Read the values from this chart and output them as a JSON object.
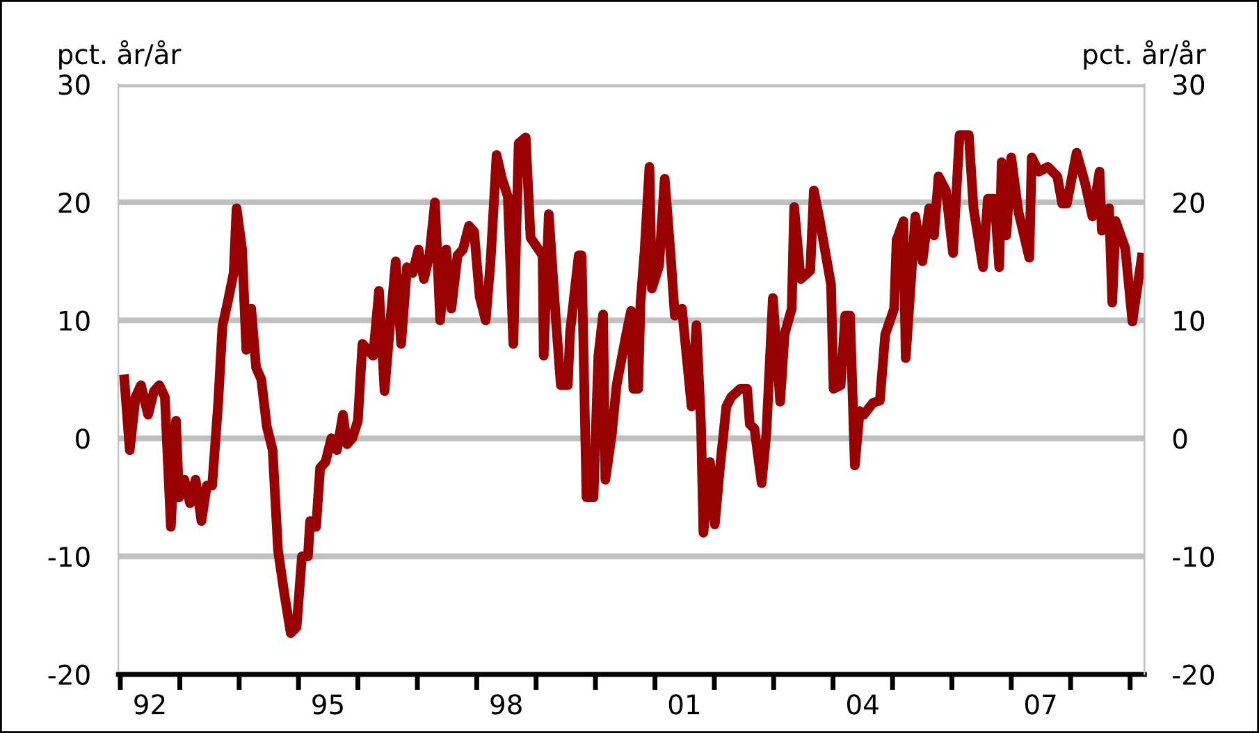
{
  "chart_data": {
    "type": "line",
    "ylabel": "pct. år/år",
    "y2label": "pct. år/år",
    "x": [
      "1992-01-26",
      "1992-02-28",
      "1992-04-04",
      "1992-05-07",
      "1992-06-20",
      "1992-07-26",
      "1992-08-28",
      "1992-10-01",
      "1992-11-07",
      "1992-12-09",
      "1992-12-27",
      "1993-01-29",
      "1993-03-05",
      "1993-04-08",
      "1993-05-14",
      "1993-06-16",
      "1993-07-19",
      "1993-08-25",
      "1993-09-20",
      "1993-10-22",
      "1993-11-28",
      "1993-12-16",
      "1994-01-19",
      "1994-02-14",
      "1994-03-16",
      "1994-04-15",
      "1994-05-17",
      "1994-06-20",
      "1994-07-26",
      "1994-08-28",
      "1994-10-04",
      "1994-11-14",
      "1994-12-20",
      "1995-01-22",
      "1995-02-28",
      "1995-03-13",
      "1995-04-19",
      "1995-05-14",
      "1995-06-16",
      "1995-07-22",
      "1995-08-25",
      "1995-10-01",
      "1995-10-26",
      "1995-11-28",
      "1996-01-01",
      "1996-01-29",
      "1996-03-02",
      "1996-04-04",
      "1996-05-10",
      "1996-06-13",
      "1996-07-19",
      "1996-08-21",
      "1996-09-23",
      "1996-10-29",
      "1996-12-02",
      "1997-01-08",
      "1997-02-10",
      "1997-03-16",
      "1997-04-19",
      "1997-05-21",
      "1997-06-27",
      "1997-07-29",
      "1997-09-05",
      "1997-10-08",
      "1997-11-14",
      "1997-12-16",
      "1998-01-19",
      "1998-02-25",
      "1998-03-27",
      "1998-05-03",
      "1998-06-05",
      "1998-07-11",
      "1998-08-14",
      "1998-09-16",
      "1998-10-29",
      "1998-11-28",
      "1999-02-10",
      "1999-02-17",
      "1999-03-20",
      "1999-05-03",
      "1999-06-02",
      "1999-07-15",
      "1999-07-29",
      "1999-09-20",
      "1999-10-08",
      "1999-11-07",
      "1999-12-20",
      "2000-01-19",
      "2000-02-17",
      "2000-03-02",
      "2000-04-11",
      "2000-05-10",
      "2000-07-08",
      "2000-08-07",
      "2000-08-21",
      "2000-09-20",
      "2000-10-04",
      "2000-10-29",
      "2000-11-28",
      "2000-12-13",
      "2001-01-26",
      "2001-03-02",
      "2001-04-08",
      "2001-05-03",
      "2001-06-16",
      "2001-08-14",
      "2001-09-13",
      "2001-10-11",
      "2001-10-26",
      "2001-12-05",
      "2002-01-04",
      "2002-02-03",
      "2002-03-16",
      "2002-04-15",
      "2002-06-09",
      "2002-07-22",
      "2002-08-07",
      "2002-09-05",
      "2002-10-19",
      "2002-11-17",
      "2002-12-27",
      "2003-02-10",
      "2003-03-09",
      "2003-04-22",
      "2003-05-07",
      "2003-06-16",
      "2003-08-14",
      "2003-09-05",
      "2003-10-11",
      "2003-12-20",
      "2004-01-04",
      "2004-02-17",
      "2004-03-16",
      "2004-04-15",
      "2004-05-14",
      "2004-06-13",
      "2004-07-08",
      "2004-09-02",
      "2004-10-15",
      "2004-11-17",
      "2005-01-11",
      "2005-01-26",
      "2005-03-09",
      "2005-03-23",
      "2005-05-21",
      "2005-07-04",
      "2005-08-14",
      "2005-09-13",
      "2005-10-11",
      "2005-11-25",
      "2006-01-08",
      "2006-02-17",
      "2006-04-15",
      "2006-05-14",
      "2006-07-11",
      "2006-08-10",
      "2006-09-20",
      "2006-10-19",
      "2006-11-03",
      "2006-12-02",
      "2007-01-01",
      "2007-02-14",
      "2007-04-22",
      "2007-05-07",
      "2007-06-20",
      "2007-08-14",
      "2007-10-11",
      "2007-11-10",
      "2007-12-09",
      "2008-02-07",
      "2008-04-01",
      "2008-05-14",
      "2008-06-27",
      "2008-07-11",
      "2008-08-25",
      "2008-09-13",
      "2008-10-04",
      "2008-12-02",
      "2009-01-15",
      "2009-03-13"
    ],
    "series": [
      {
        "color": "#990000",
        "values": [
          5,
          -1,
          3.5,
          4.5,
          2,
          4,
          4.5,
          3.5,
          -7.5,
          1.5,
          -5,
          -3.5,
          -5.5,
          -3.5,
          -7,
          -4,
          -4,
          3,
          9.5,
          11.5,
          14,
          19.5,
          16,
          7.5,
          11,
          6,
          5,
          1,
          -1,
          -9.5,
          -13,
          -16.5,
          -16,
          -10,
          -10,
          -7,
          -7.5,
          -2.5,
          -2,
          0,
          -1,
          2,
          -0.5,
          0,
          1.5,
          8,
          7.5,
          7,
          12.5,
          4,
          10,
          15,
          8,
          14.5,
          14,
          16,
          13.5,
          15.5,
          20,
          10,
          16,
          11,
          15.5,
          16,
          18,
          17.5,
          12,
          10,
          15,
          24,
          22,
          20.5,
          8,
          25,
          25.5,
          17,
          15.5,
          7,
          19,
          10,
          4.5,
          4.5,
          9,
          15.5,
          15.5,
          -5,
          -5,
          7,
          10.5,
          -3.5,
          0.4,
          4.5,
          8.8,
          10.8,
          4.2,
          4.2,
          11.5,
          15.8,
          23,
          12.7,
          14.6,
          22,
          15.4,
          10.4,
          11,
          2.7,
          9.6,
          1.2,
          -8,
          -2,
          -7.3,
          -2.7,
          2.7,
          3.5,
          4.2,
          4.2,
          1.2,
          0.8,
          -3.8,
          0.4,
          11.9,
          3.1,
          8.8,
          11,
          19.6,
          13.5,
          14.2,
          21,
          18.5,
          13,
          4.2,
          4.5,
          10.4,
          10.4,
          -2.3,
          2.3,
          2,
          3,
          3.2,
          8.8,
          11,
          16.8,
          18.4,
          6.8,
          18.8,
          15,
          19.5,
          17.2,
          22.2,
          21,
          15.7,
          25.7,
          25.7,
          19.5,
          14.5,
          20.3,
          20.3,
          14.5,
          23.4,
          17.2,
          23.8,
          19.2,
          15.3,
          23.8,
          22.6,
          23,
          22.2,
          19.9,
          19.9,
          24.2,
          21.5,
          18.8,
          22.6,
          17.6,
          19.5,
          11.5,
          18.4,
          16.1,
          9.9,
          15.3
        ]
      }
    ],
    "xlim": [
      "1991-12-20",
      "2009-03-30"
    ],
    "xticks": [
      {
        "value": "1992-01-01",
        "label": null
      },
      {
        "value": "1992-07-01",
        "label": "92"
      },
      {
        "value": "1993-01-01",
        "label": null
      },
      {
        "value": "1994-01-01",
        "label": null
      },
      {
        "value": "1995-01-01",
        "label": null
      },
      {
        "value": "1995-07-01",
        "label": "95"
      },
      {
        "value": "1996-01-01",
        "label": null
      },
      {
        "value": "1997-01-01",
        "label": null
      },
      {
        "value": "1998-01-01",
        "label": null
      },
      {
        "value": "1998-07-01",
        "label": "98"
      },
      {
        "value": "1999-01-01",
        "label": null
      },
      {
        "value": "2000-01-01",
        "label": null
      },
      {
        "value": "2001-01-01",
        "label": null
      },
      {
        "value": "2001-07-01",
        "label": "01"
      },
      {
        "value": "2002-01-01",
        "label": null
      },
      {
        "value": "2003-01-01",
        "label": null
      },
      {
        "value": "2004-01-01",
        "label": null
      },
      {
        "value": "2004-07-01",
        "label": "04"
      },
      {
        "value": "2005-01-01",
        "label": null
      },
      {
        "value": "2006-01-01",
        "label": null
      },
      {
        "value": "2007-01-01",
        "label": null
      },
      {
        "value": "2007-07-01",
        "label": "07"
      },
      {
        "value": "2008-01-01",
        "label": null
      },
      {
        "value": "2009-01-01",
        "label": null
      }
    ],
    "ylim": [
      -20,
      30
    ],
    "yticks": [
      -20,
      -10,
      0,
      10,
      20,
      30
    ],
    "y2lim": [
      -20,
      30
    ],
    "y2ticks": [
      -20,
      -10,
      0,
      10,
      20,
      30
    ],
    "grid": "y",
    "marker": "none",
    "line_style": "solid"
  }
}
